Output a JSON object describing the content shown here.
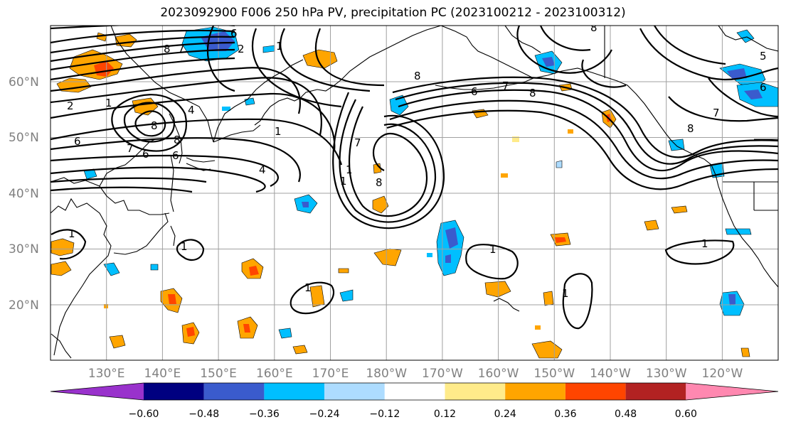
{
  "title": "2023092900 F006 250 hPa PV, precipitation PC (2023100212 - 2023100312)",
  "lon_labels": [
    "130°E",
    "140°E",
    "150°E",
    "160°E",
    "170°E",
    "180°W",
    "170°W",
    "160°W",
    "150°W",
    "140°W",
    "130°W",
    "120°W"
  ],
  "lat_labels": [
    "60°N",
    "50°N",
    "40°N",
    "30°N",
    "20°N"
  ],
  "colorbar": {
    "colors": [
      "#9932CC",
      "#000080",
      "#3A5BCD",
      "#00BFFF",
      "#ADDCFF",
      "#FFFFFF",
      "#FFEB8A",
      "#FFA500",
      "#FF4500",
      "#B22222",
      "#FF88B0"
    ],
    "tick_labels": [
      "−0.60",
      "−0.48",
      "−0.36",
      "−0.24",
      "−0.12",
      "0.12",
      "0.24",
      "0.36",
      "0.48",
      "0.60"
    ]
  },
  "contour_labels": [
    "8",
    "7",
    "6",
    "2",
    "1",
    "2",
    "1",
    "6",
    "8",
    "6",
    "8",
    "4",
    "7",
    "6",
    "4",
    "1",
    "1",
    "8",
    "1",
    "6",
    "7",
    "8",
    "7",
    "8",
    "8",
    "6",
    "5",
    "7",
    "8",
    "1",
    "1",
    "1",
    "1",
    "1",
    "1"
  ],
  "colors": {
    "grid": "#a0a0a0",
    "contour": "#000000",
    "coast": "#000000"
  }
}
